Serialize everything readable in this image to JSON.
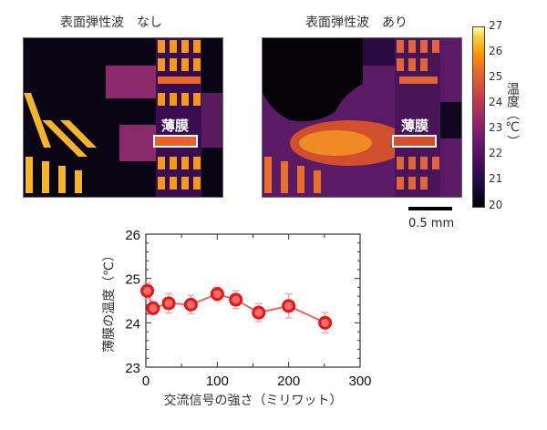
{
  "panels": {
    "left": {
      "title": "表面弾性波　なし",
      "film_label": "薄膜"
    },
    "right": {
      "title": "表面弾性波　あり",
      "film_label": "薄膜"
    }
  },
  "colorbar": {
    "label": "温度（℃）",
    "ticks": [
      "27",
      "26",
      "25",
      "24",
      "23",
      "22",
      "21",
      "20"
    ],
    "min": 20,
    "max": 27,
    "colormap": "inferno"
  },
  "scalebar": {
    "label": "0.5 mm"
  },
  "chart_data": {
    "type": "line",
    "title": "",
    "xlabel": "交流信号の強さ（ミリワット）",
    "ylabel": "薄膜の温度（℃）",
    "xlim": [
      0,
      300
    ],
    "ylim": [
      23,
      26
    ],
    "xticks": [
      "0",
      "100",
      "200",
      "300"
    ],
    "yticks": [
      "23",
      "24",
      "25",
      "26"
    ],
    "grid": false,
    "marker_color": "#ee1111",
    "line_color": "#ee6666",
    "x": [
      2,
      10,
      32,
      63,
      100,
      126,
      158,
      200,
      251
    ],
    "values": [
      24.72,
      24.33,
      24.44,
      24.41,
      24.65,
      24.52,
      24.23,
      24.38,
      24.0
    ],
    "errors": [
      0.18,
      0.14,
      0.22,
      0.21,
      0.15,
      0.2,
      0.2,
      0.27,
      0.23
    ]
  }
}
